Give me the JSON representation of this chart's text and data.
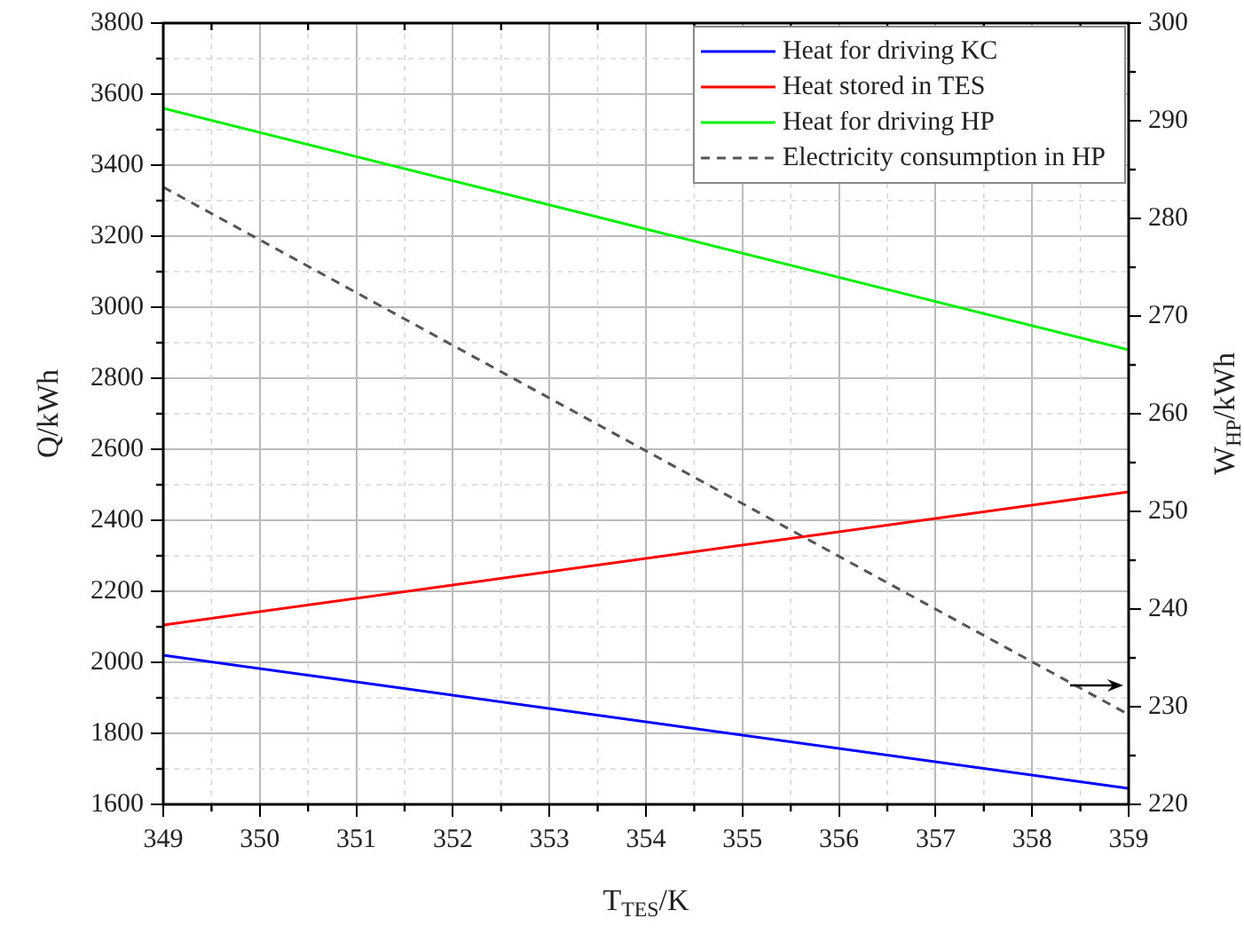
{
  "chart_data": {
    "type": "line",
    "xlabel": "T$_{TES}$/K",
    "ylabel": "Q/kWh",
    "y2label": "W$_{HP}$/kWh",
    "x": [
      349,
      359
    ],
    "series": [
      {
        "name": "Heat for driving KC",
        "color": "#0000ff",
        "values": [
          2020,
          1645
        ]
      },
      {
        "name": "Heat stored in TES",
        "color": "#ff0000",
        "values": [
          2105,
          2480
        ]
      },
      {
        "name": "Heat for driving HP",
        "color": "#00ee00",
        "values": [
          3560,
          2880
        ]
      },
      {
        "name": "Electricity consumption in HP",
        "color": "#555555",
        "values": [
          283.2,
          229.2
        ],
        "axis": "y2",
        "line_style": "dashed"
      }
    ],
    "xlim": [
      349,
      359
    ],
    "xticks": [
      349,
      350,
      351,
      352,
      353,
      354,
      355,
      356,
      357,
      358,
      359
    ],
    "ylim": [
      1600,
      3800
    ],
    "yticks": [
      1600,
      1800,
      2000,
      2200,
      2400,
      2600,
      2800,
      3000,
      3200,
      3400,
      3600,
      3800
    ],
    "y2lim": [
      220,
      300
    ],
    "y2ticks": [
      220,
      230,
      240,
      250,
      260,
      270,
      280,
      290,
      300
    ],
    "grid": true,
    "legend": "top right",
    "marker": "none",
    "line_style": "solid"
  }
}
